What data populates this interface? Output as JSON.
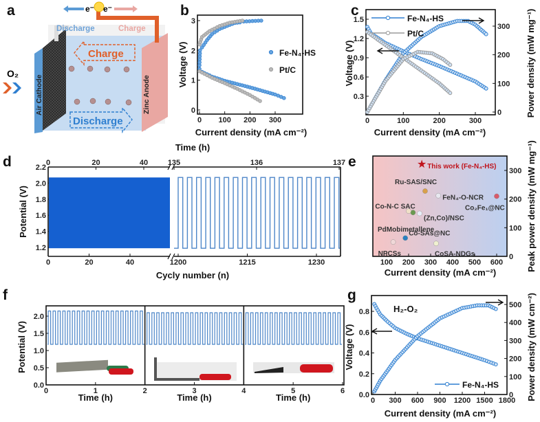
{
  "panel_letters": [
    "a",
    "b",
    "c",
    "d",
    "e",
    "f",
    "g"
  ],
  "colors": {
    "fe": "#2f7fd0",
    "fe_dark": "#1f5fa8",
    "pt": "#9a9a9a",
    "cycle": "#1560d0",
    "wave": "#4d86c8",
    "arrow_red": "#e06030",
    "star": "#c0141c"
  },
  "schematic": {
    "electron_left": "e⁻",
    "electron_right": "e⁻",
    "discharge_top": "Discharge",
    "charge_top": "Charge",
    "charge_arrow": "Charge",
    "discharge_arrow": "Discharge",
    "oxygen": "O₂",
    "air_cathode": "Air Cathode",
    "zinc_anode": "Zinc Anode"
  },
  "chart_data": [
    {
      "id": "b",
      "type": "scatter",
      "xlabel": "Current density (mA cm⁻²)",
      "ylabel": "Voltage (V)",
      "xticks": [
        0,
        100,
        200,
        300
      ],
      "yticks": [
        0,
        1,
        2,
        3
      ],
      "legend": "center-right",
      "series": [
        {
          "name": "Fe-N₄-HS",
          "color": "#2f7fd0",
          "branches": [
            [
              [
                0,
                1.38
              ],
              [
                10,
                1.28
              ],
              [
                50,
                1.12
              ],
              [
                100,
                0.98
              ],
              [
                150,
                0.87
              ],
              [
                200,
                0.76
              ],
              [
                250,
                0.64
              ],
              [
                300,
                0.52
              ],
              [
                335,
                0.4
              ]
            ],
            [
              [
                0,
                1.5
              ],
              [
                2,
                2.0
              ],
              [
                10,
                2.1
              ],
              [
                30,
                2.35
              ],
              [
                50,
                2.55
              ],
              [
                80,
                2.72
              ],
              [
                120,
                2.86
              ],
              [
                140,
                2.92
              ],
              [
                160,
                2.94
              ],
              [
                175,
                2.97
              ],
              [
                245,
                3.0
              ]
            ]
          ]
        },
        {
          "name": "Pt/C",
          "color": "#9a9a9a",
          "branches": [
            [
              [
                0,
                1.3
              ],
              [
                50,
                1.08
              ],
              [
                100,
                0.9
              ],
              [
                150,
                0.71
              ],
              [
                200,
                0.5
              ],
              [
                240,
                0.3
              ]
            ],
            [
              [
                0,
                2.2
              ],
              [
                10,
                2.45
              ],
              [
                40,
                2.65
              ],
              [
                80,
                2.82
              ],
              [
                120,
                2.93
              ],
              [
                170,
                3.0
              ]
            ]
          ]
        }
      ]
    },
    {
      "id": "c",
      "type": "line",
      "xlabel": "Current density (mA cm⁻²)",
      "ylabel": "Voltage (V)",
      "y2label": "Power density (mW mg⁻¹)",
      "xticks": [
        0,
        100,
        200,
        300
      ],
      "yticks": [
        0.3,
        0.6,
        0.9,
        1.2,
        1.5
      ],
      "y2ticks": [
        0,
        100,
        200,
        300
      ],
      "legend": "top-left",
      "series": [
        {
          "name": "Fe-N₄-HS",
          "color": "#2f7fd0",
          "axis": "left",
          "values": [
            [
              0,
              1.38
            ],
            [
              10,
              1.28
            ],
            [
              50,
              1.13
            ],
            [
              100,
              1.0
            ],
            [
              150,
              0.88
            ],
            [
              200,
              0.77
            ],
            [
              250,
              0.65
            ],
            [
              300,
              0.53
            ],
            [
              330,
              0.42
            ]
          ]
        },
        {
          "name": "Fe-N₄-HS",
          "color": "#2f7fd0",
          "axis": "right",
          "values": [
            [
              0,
              0
            ],
            [
              50,
              110
            ],
            [
              100,
              205
            ],
            [
              150,
              262
            ],
            [
              200,
              300
            ],
            [
              250,
              318
            ],
            [
              280,
              318
            ],
            [
              300,
              305
            ],
            [
              330,
              272
            ]
          ]
        },
        {
          "name": "Pt/C",
          "color": "#9a9a9a",
          "axis": "left",
          "values": [
            [
              0,
              1.3
            ],
            [
              50,
              1.1
            ],
            [
              100,
              0.9
            ],
            [
              150,
              0.7
            ],
            [
              200,
              0.5
            ],
            [
              230,
              0.35
            ]
          ]
        },
        {
          "name": "Pt/C",
          "color": "#9a9a9a",
          "axis": "right",
          "values": [
            [
              0,
              0
            ],
            [
              50,
              108
            ],
            [
              100,
              185
            ],
            [
              140,
              210
            ],
            [
              180,
              205
            ],
            [
              210,
              185
            ],
            [
              230,
              165
            ]
          ]
        }
      ]
    },
    {
      "id": "d",
      "type": "line",
      "xlabel": "Cycly number (n)",
      "x2label": "Time (h)",
      "ylabel": "Potential (V)",
      "xticks_left": [
        0,
        20,
        40
      ],
      "xticks_right": [
        1200,
        1215,
        1230
      ],
      "x2ticks_left": [
        0,
        20,
        40
      ],
      "x2ticks_right": [
        135,
        136,
        137
      ],
      "yticks": [
        1.2,
        1.4,
        1.6,
        1.8,
        2.0,
        2.2
      ],
      "charge_potential": 2.07,
      "discharge_potential": 1.19,
      "cycles_right": [
        1200,
        1236
      ]
    },
    {
      "id": "e",
      "type": "scatter",
      "xlabel": "Current density (mA cm⁻²)",
      "ylabel": "Peak power density (mW mg⁻¹)",
      "xticks": [
        100,
        200,
        300,
        400,
        500,
        600
      ],
      "yticks": [
        0,
        100,
        200,
        300
      ],
      "points": [
        {
          "label": "This work (Fe-N₄-HS)",
          "x": 260,
          "y": 322,
          "color": "#c0141c",
          "marker": "star"
        },
        {
          "label": "Ru-SAS/SNC",
          "x": 275,
          "y": 228,
          "color": "#d9a04a"
        },
        {
          "label": "FeN₄-O-NCR",
          "x": 335,
          "y": 212,
          "color": "#e8e8f0"
        },
        {
          "label": "Co₂Fe₁@NC",
          "x": 600,
          "y": 210,
          "color": "#d85a6a"
        },
        {
          "label": "Co-N-C SAC",
          "x": 220,
          "y": 153,
          "color": "#6a9a50"
        },
        {
          "label": "(Zn,Co)/NSC",
          "x": 250,
          "y": 150,
          "color": "#e8eef8"
        },
        {
          "label": "PdMobimetallene",
          "x": 200,
          "y": 158,
          "color": "#f0e0c8"
        },
        {
          "label": "Co-SAs@NC",
          "x": 185,
          "y": 64,
          "color": "#2a80c0"
        },
        {
          "label": "NPCSs",
          "x": 130,
          "y": 50,
          "color": "#f0d8d8"
        },
        {
          "label": "CoSA-NDGs",
          "x": 325,
          "y": 45,
          "color": "#f0f0d0"
        }
      ]
    },
    {
      "id": "f",
      "type": "line",
      "xlabel": "Time (h)",
      "ylabel": "Potential (V)",
      "xticks": [
        0,
        1,
        2,
        3,
        4,
        5,
        6
      ],
      "yticks": [
        0.0,
        0.5,
        1.0,
        1.5,
        2.0
      ],
      "segments": [
        {
          "range": [
            0,
            2
          ],
          "charge_potential": 2.15,
          "discharge_potential": 1.18,
          "state": "flat"
        },
        {
          "range": [
            2,
            4
          ],
          "charge_potential": 2.1,
          "discharge_potential": 1.18,
          "state": "bent"
        },
        {
          "range": [
            4,
            6
          ],
          "charge_potential": 2.1,
          "discharge_potential": 1.18,
          "state": "twisted"
        }
      ]
    },
    {
      "id": "g",
      "type": "line",
      "title": "H₂-O₂",
      "xlabel": "Current density (mA cm⁻²)",
      "ylabel": "Voltage (V)",
      "y2label": "Power density (mW cm⁻²)",
      "xticks": [
        0,
        300,
        600,
        900,
        1200,
        1500,
        1800
      ],
      "yticks": [
        0.0,
        0.2,
        0.4,
        0.6,
        0.8
      ],
      "y2ticks": [
        0,
        100,
        200,
        300,
        400,
        500
      ],
      "legend": "bottom-right",
      "series": [
        {
          "name": "Fe-N₄-HS",
          "color": "#2f7fd0",
          "axis": "left",
          "values": [
            [
              20,
              0.87
            ],
            [
              50,
              0.83
            ],
            [
              100,
              0.77
            ],
            [
              200,
              0.7
            ],
            [
              300,
              0.64
            ],
            [
              450,
              0.585
            ],
            [
              600,
              0.54
            ],
            [
              900,
              0.47
            ],
            [
              1200,
              0.4
            ],
            [
              1500,
              0.33
            ],
            [
              1650,
              0.29
            ]
          ]
        },
        {
          "name": "Fe-N₄-HS",
          "color": "#2f7fd0",
          "axis": "right",
          "values": [
            [
              20,
              17
            ],
            [
              100,
              77
            ],
            [
              300,
              192
            ],
            [
              600,
              324
            ],
            [
              900,
              423
            ],
            [
              1200,
              480
            ],
            [
              1400,
              495
            ],
            [
              1550,
              495
            ],
            [
              1650,
              475
            ]
          ]
        }
      ]
    }
  ]
}
